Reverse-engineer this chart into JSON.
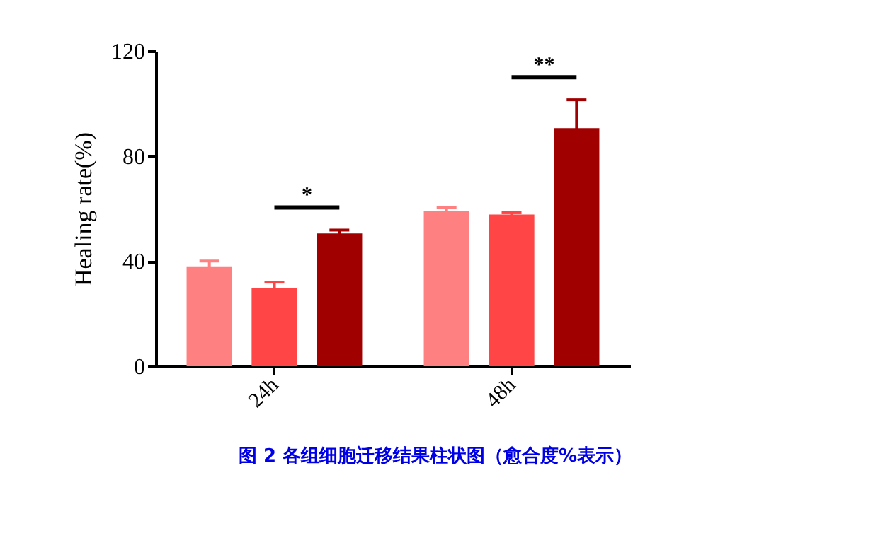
{
  "chart_data": {
    "type": "bar",
    "title": "图 2  各组细胞迁移结果柱状图（愈合度%表示）",
    "ylabel": "Healing rate(%)",
    "categories": [
      "24h",
      "48h"
    ],
    "series": [
      {
        "color": "#ff8080",
        "values": [
          38.0,
          58.9
        ],
        "errors": [
          2.0,
          1.5
        ]
      },
      {
        "color": "#ff4545",
        "values": [
          29.6,
          57.7
        ],
        "errors": [
          2.4,
          0.7
        ]
      },
      {
        "color": "#a00000",
        "values": [
          50.5,
          90.6
        ],
        "errors": [
          1.3,
          10.8
        ]
      }
    ],
    "ylim": [
      0,
      120
    ],
    "yticks": [
      0,
      40,
      80,
      120
    ],
    "grid": false,
    "annotations": [
      "*",
      "**"
    ]
  }
}
